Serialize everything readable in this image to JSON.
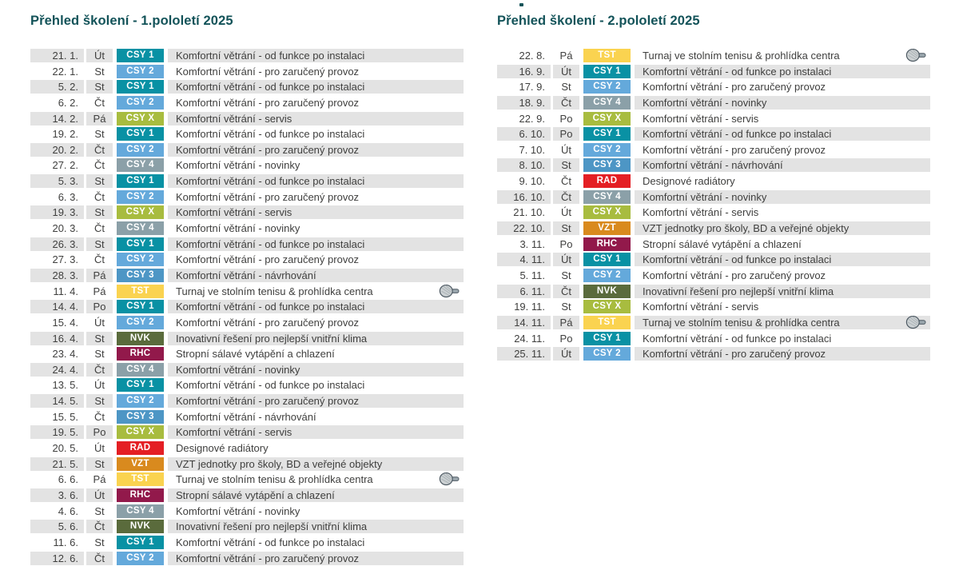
{
  "colors": {
    "title": "#135359",
    "row_text": "#3f3f3e",
    "stripe": "#e3e3e3",
    "badge_text": "#ffffff",
    "page_background": "#ffffff"
  },
  "courses": {
    "CSY1": {
      "code": "CSY 1",
      "color": "#0991a4",
      "description": "Komfortní větrání - od funkce po instalaci"
    },
    "CSY2": {
      "code": "CSY 2",
      "color": "#64a9db",
      "description": "Komfortní větrání - pro zaručený provoz"
    },
    "CSY3": {
      "code": "CSY 3",
      "color": "#4d96c5",
      "description": "Komfortní větrání - návrhování"
    },
    "CSY4": {
      "code": "CSY 4",
      "color": "#8ba0a8",
      "description": "Komfortní větrání - novinky"
    },
    "CSYX": {
      "code": "CSY X",
      "color": "#a8bc3f",
      "description": "Komfortní větrání - servis"
    },
    "TST": {
      "code": "TST",
      "color": "#fad350",
      "description": "Turnaj ve stolním tenisu & prohlídka centra",
      "icon": "table-tennis-paddle-icon"
    },
    "NVK": {
      "code": "NVK",
      "color": "#5a6b3c",
      "description": "Inovativní řešení pro nejlepší vnitřní klima"
    },
    "RHC": {
      "code": "RHC",
      "color": "#92194b",
      "description": "Stropní sálavé vytápění a chlazení"
    },
    "RAD": {
      "code": "RAD",
      "color": "#e41f24",
      "description": "Designové radiátory"
    },
    "VZT": {
      "code": "VZT",
      "color": "#d98a1e",
      "description": "VZT jednotky pro školy, BD a veřejné objekty"
    }
  },
  "tables": [
    {
      "title": "Přehled školení - 1.pololetí 2025",
      "stripe_offset": 0,
      "rows": [
        {
          "date": "21. 1.",
          "day": "Út",
          "course": "CSY1"
        },
        {
          "date": "22. 1.",
          "day": "St",
          "course": "CSY2"
        },
        {
          "date": "5. 2.",
          "day": "St",
          "course": "CSY1"
        },
        {
          "date": "6. 2.",
          "day": "Čt",
          "course": "CSY2"
        },
        {
          "date": "14. 2.",
          "day": "Pá",
          "course": "CSYX"
        },
        {
          "date": "19. 2.",
          "day": "St",
          "course": "CSY1"
        },
        {
          "date": "20. 2.",
          "day": "Čt",
          "course": "CSY2"
        },
        {
          "date": "27. 2.",
          "day": "Čt",
          "course": "CSY4"
        },
        {
          "date": "5. 3.",
          "day": "St",
          "course": "CSY1"
        },
        {
          "date": "6. 3.",
          "day": "Čt",
          "course": "CSY2"
        },
        {
          "date": "19. 3.",
          "day": "St",
          "course": "CSYX"
        },
        {
          "date": "20. 3.",
          "day": "Čt",
          "course": "CSY4"
        },
        {
          "date": "26. 3.",
          "day": "St",
          "course": "CSY1"
        },
        {
          "date": "27. 3.",
          "day": "Čt",
          "course": "CSY2"
        },
        {
          "date": "28. 3.",
          "day": "Pá",
          "course": "CSY3"
        },
        {
          "date": "11. 4.",
          "day": "Pá",
          "course": "TST"
        },
        {
          "date": "14. 4.",
          "day": "Po",
          "course": "CSY1"
        },
        {
          "date": "15. 4.",
          "day": "Út",
          "course": "CSY2"
        },
        {
          "date": "16. 4.",
          "day": "St",
          "course": "NVK"
        },
        {
          "date": "23. 4.",
          "day": "St",
          "course": "RHC"
        },
        {
          "date": "24. 4.",
          "day": "Čt",
          "course": "CSY4"
        },
        {
          "date": "13. 5.",
          "day": "Út",
          "course": "CSY1"
        },
        {
          "date": "14. 5.",
          "day": "St",
          "course": "CSY2"
        },
        {
          "date": "15. 5.",
          "day": "Čt",
          "course": "CSY3"
        },
        {
          "date": "19. 5.",
          "day": "Po",
          "course": "CSYX"
        },
        {
          "date": "20. 5.",
          "day": "Út",
          "course": "RAD"
        },
        {
          "date": "21. 5.",
          "day": "St",
          "course": "VZT"
        },
        {
          "date": "6. 6.",
          "day": "Pá",
          "course": "TST"
        },
        {
          "date": "3. 6.",
          "day": "Út",
          "course": "RHC"
        },
        {
          "date": "4. 6.",
          "day": "St",
          "course": "CSY4"
        },
        {
          "date": "5. 6.",
          "day": "Čt",
          "course": "NVK"
        },
        {
          "date": "11. 6.",
          "day": "St",
          "course": "CSY1"
        },
        {
          "date": "12. 6.",
          "day": "Čt",
          "course": "CSY2"
        }
      ]
    },
    {
      "title": "Přehled školení - 2.pololetí 2025",
      "stripe_offset": 1,
      "rows": [
        {
          "date": "22. 8.",
          "day": "Pá",
          "course": "TST"
        },
        {
          "date": "16. 9.",
          "day": "Út",
          "course": "CSY1"
        },
        {
          "date": "17. 9.",
          "day": "St",
          "course": "CSY2"
        },
        {
          "date": "18. 9.",
          "day": "Čt",
          "course": "CSY4"
        },
        {
          "date": "22. 9.",
          "day": "Po",
          "course": "CSYX"
        },
        {
          "date": "6. 10.",
          "day": "Po",
          "course": "CSY1"
        },
        {
          "date": "7. 10.",
          "day": "Út",
          "course": "CSY2"
        },
        {
          "date": "8. 10.",
          "day": "St",
          "course": "CSY3"
        },
        {
          "date": "9. 10.",
          "day": "Čt",
          "course": "RAD"
        },
        {
          "date": "16. 10.",
          "day": "Čt",
          "course": "CSY4"
        },
        {
          "date": "21. 10.",
          "day": "Út",
          "course": "CSYX"
        },
        {
          "date": "22. 10.",
          "day": "St",
          "course": "VZT"
        },
        {
          "date": "3. 11.",
          "day": "Po",
          "course": "RHC"
        },
        {
          "date": "4. 11.",
          "day": "Út",
          "course": "CSY1"
        },
        {
          "date": "5. 11.",
          "day": "St",
          "course": "CSY2"
        },
        {
          "date": "6. 11.",
          "day": "Čt",
          "course": "NVK"
        },
        {
          "date": "19. 11.",
          "day": "St",
          "course": "CSYX"
        },
        {
          "date": "14. 11.",
          "day": "Pá",
          "course": "TST"
        },
        {
          "date": "24. 11.",
          "day": "Po",
          "course": "CSY1"
        },
        {
          "date": "25. 11.",
          "day": "Út",
          "course": "CSY2"
        }
      ]
    }
  ]
}
